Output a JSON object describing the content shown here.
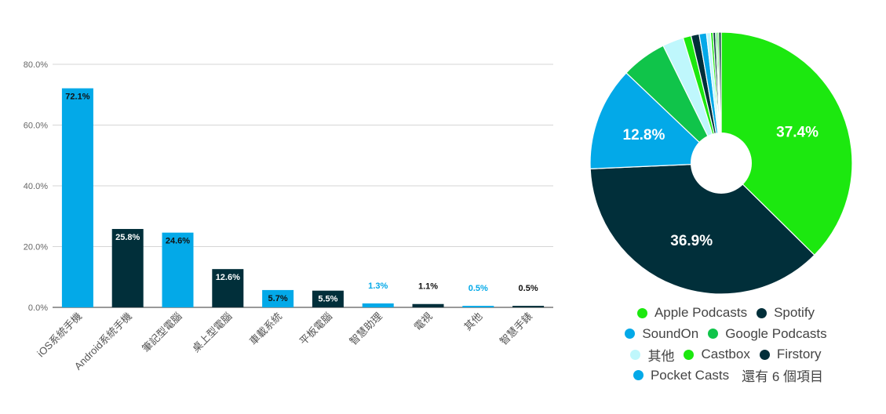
{
  "chart_data": [
    {
      "type": "bar",
      "categories": [
        "iOS系統手機",
        "Android系統手機",
        "筆記型電腦",
        "桌上型電腦",
        "車載系統",
        "平板電腦",
        "智慧助理",
        "電視",
        "其他",
        "智慧手錶"
      ],
      "values": [
        72.1,
        25.8,
        24.6,
        12.6,
        5.7,
        5.5,
        1.3,
        1.1,
        0.5,
        0.5
      ],
      "value_labels": [
        "72.1%",
        "25.8%",
        "24.6%",
        "12.6%",
        "5.7%",
        "5.5%",
        "1.3%",
        "1.1%",
        "0.5%",
        "0.5%"
      ],
      "bar_colors": [
        "#03a9e8",
        "#012f3a",
        "#03a9e8",
        "#012f3a",
        "#03a9e8",
        "#012f3a",
        "#03a9e8",
        "#012f3a",
        "#03a9e8",
        "#012f3a"
      ],
      "yticks": [
        0,
        20,
        40,
        60,
        80
      ],
      "ytick_labels": [
        "0.0%",
        "20.0%",
        "40.0%",
        "60.0%",
        "80.0%"
      ],
      "ylim": [
        0,
        80
      ],
      "grid": true,
      "title": "",
      "xlabel": "",
      "ylabel": ""
    },
    {
      "type": "pie",
      "donut": true,
      "slices": [
        {
          "label": "Apple Podcasts",
          "value": 37.4,
          "color": "#1ce80f",
          "show_label": "37.4%"
        },
        {
          "label": "Spotify",
          "value": 36.9,
          "color": "#012f3a",
          "show_label": "36.9%"
        },
        {
          "label": "SoundOn",
          "value": 12.8,
          "color": "#03a9e8",
          "show_label": "12.8%"
        },
        {
          "label": "Google Podcasts",
          "value": 5.6,
          "color": "#10c44a",
          "show_label": ""
        },
        {
          "label": "其他",
          "value": 2.6,
          "color": "#bff7fc",
          "show_label": ""
        },
        {
          "label": "Castbox",
          "value": 1.0,
          "color": "#1ce80f",
          "show_label": ""
        },
        {
          "label": "Firstory",
          "value": 1.0,
          "color": "#012f3a",
          "show_label": ""
        },
        {
          "label": "Pocket Casts",
          "value": 0.9,
          "color": "#03a9e8",
          "show_label": ""
        },
        {
          "label": "",
          "value": 0.5,
          "color": "#bff7fc",
          "show_label": ""
        },
        {
          "label": "",
          "value": 0.3,
          "color": "#1ce80f",
          "show_label": ""
        },
        {
          "label": "",
          "value": 0.3,
          "color": "#012f3a",
          "show_label": ""
        },
        {
          "label": "",
          "value": 0.2,
          "color": "#10c44a",
          "show_label": ""
        },
        {
          "label": "",
          "value": 0.2,
          "color": "#1ce80f",
          "show_label": ""
        },
        {
          "label": "",
          "value": 0.3,
          "color": "#012f3a",
          "show_label": ""
        }
      ],
      "legend_position": "bottom",
      "legend_more_text": "還有 6 個項目",
      "title": ""
    }
  ],
  "colors": {
    "blue": "#03a9e8",
    "dark": "#012f3a",
    "green": "#1ce80f",
    "google_green": "#10c44a",
    "light_cyan": "#bff7fc",
    "grid": "#d6d6d6",
    "axis_text": "#666666"
  }
}
